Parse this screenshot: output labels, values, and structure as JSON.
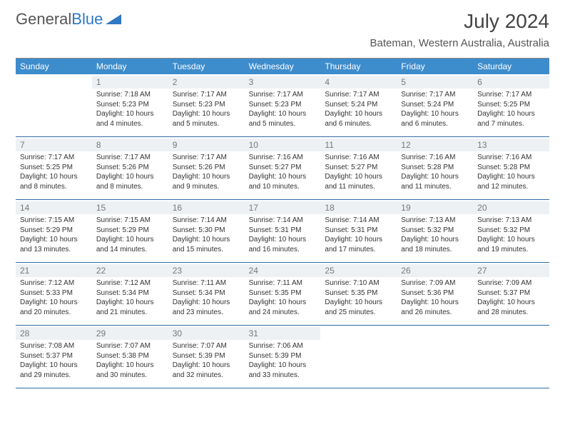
{
  "logo": {
    "text_a": "General",
    "text_b": "Blue",
    "shape_color": "#2f78c2"
  },
  "header": {
    "month_title": "July 2024",
    "location": "Bateman, Western Australia, Australia"
  },
  "colors": {
    "header_bg": "#3d8ccc",
    "row_border": "#2f6aa3",
    "daynum_bg": "#eef1f3"
  },
  "days_of_week": [
    "Sunday",
    "Monday",
    "Tuesday",
    "Wednesday",
    "Thursday",
    "Friday",
    "Saturday"
  ],
  "first_weekday": 1,
  "days": [
    {
      "n": 1,
      "sunrise": "7:18 AM",
      "sunset": "5:23 PM",
      "daylight": "10 hours and 4 minutes."
    },
    {
      "n": 2,
      "sunrise": "7:17 AM",
      "sunset": "5:23 PM",
      "daylight": "10 hours and 5 minutes."
    },
    {
      "n": 3,
      "sunrise": "7:17 AM",
      "sunset": "5:23 PM",
      "daylight": "10 hours and 5 minutes."
    },
    {
      "n": 4,
      "sunrise": "7:17 AM",
      "sunset": "5:24 PM",
      "daylight": "10 hours and 6 minutes."
    },
    {
      "n": 5,
      "sunrise": "7:17 AM",
      "sunset": "5:24 PM",
      "daylight": "10 hours and 6 minutes."
    },
    {
      "n": 6,
      "sunrise": "7:17 AM",
      "sunset": "5:25 PM",
      "daylight": "10 hours and 7 minutes."
    },
    {
      "n": 7,
      "sunrise": "7:17 AM",
      "sunset": "5:25 PM",
      "daylight": "10 hours and 8 minutes."
    },
    {
      "n": 8,
      "sunrise": "7:17 AM",
      "sunset": "5:26 PM",
      "daylight": "10 hours and 8 minutes."
    },
    {
      "n": 9,
      "sunrise": "7:17 AM",
      "sunset": "5:26 PM",
      "daylight": "10 hours and 9 minutes."
    },
    {
      "n": 10,
      "sunrise": "7:16 AM",
      "sunset": "5:27 PM",
      "daylight": "10 hours and 10 minutes."
    },
    {
      "n": 11,
      "sunrise": "7:16 AM",
      "sunset": "5:27 PM",
      "daylight": "10 hours and 11 minutes."
    },
    {
      "n": 12,
      "sunrise": "7:16 AM",
      "sunset": "5:28 PM",
      "daylight": "10 hours and 11 minutes."
    },
    {
      "n": 13,
      "sunrise": "7:16 AM",
      "sunset": "5:28 PM",
      "daylight": "10 hours and 12 minutes."
    },
    {
      "n": 14,
      "sunrise": "7:15 AM",
      "sunset": "5:29 PM",
      "daylight": "10 hours and 13 minutes."
    },
    {
      "n": 15,
      "sunrise": "7:15 AM",
      "sunset": "5:29 PM",
      "daylight": "10 hours and 14 minutes."
    },
    {
      "n": 16,
      "sunrise": "7:14 AM",
      "sunset": "5:30 PM",
      "daylight": "10 hours and 15 minutes."
    },
    {
      "n": 17,
      "sunrise": "7:14 AM",
      "sunset": "5:31 PM",
      "daylight": "10 hours and 16 minutes."
    },
    {
      "n": 18,
      "sunrise": "7:14 AM",
      "sunset": "5:31 PM",
      "daylight": "10 hours and 17 minutes."
    },
    {
      "n": 19,
      "sunrise": "7:13 AM",
      "sunset": "5:32 PM",
      "daylight": "10 hours and 18 minutes."
    },
    {
      "n": 20,
      "sunrise": "7:13 AM",
      "sunset": "5:32 PM",
      "daylight": "10 hours and 19 minutes."
    },
    {
      "n": 21,
      "sunrise": "7:12 AM",
      "sunset": "5:33 PM",
      "daylight": "10 hours and 20 minutes."
    },
    {
      "n": 22,
      "sunrise": "7:12 AM",
      "sunset": "5:34 PM",
      "daylight": "10 hours and 21 minutes."
    },
    {
      "n": 23,
      "sunrise": "7:11 AM",
      "sunset": "5:34 PM",
      "daylight": "10 hours and 23 minutes."
    },
    {
      "n": 24,
      "sunrise": "7:11 AM",
      "sunset": "5:35 PM",
      "daylight": "10 hours and 24 minutes."
    },
    {
      "n": 25,
      "sunrise": "7:10 AM",
      "sunset": "5:35 PM",
      "daylight": "10 hours and 25 minutes."
    },
    {
      "n": 26,
      "sunrise": "7:09 AM",
      "sunset": "5:36 PM",
      "daylight": "10 hours and 26 minutes."
    },
    {
      "n": 27,
      "sunrise": "7:09 AM",
      "sunset": "5:37 PM",
      "daylight": "10 hours and 28 minutes."
    },
    {
      "n": 28,
      "sunrise": "7:08 AM",
      "sunset": "5:37 PM",
      "daylight": "10 hours and 29 minutes."
    },
    {
      "n": 29,
      "sunrise": "7:07 AM",
      "sunset": "5:38 PM",
      "daylight": "10 hours and 30 minutes."
    },
    {
      "n": 30,
      "sunrise": "7:07 AM",
      "sunset": "5:39 PM",
      "daylight": "10 hours and 32 minutes."
    },
    {
      "n": 31,
      "sunrise": "7:06 AM",
      "sunset": "5:39 PM",
      "daylight": "10 hours and 33 minutes."
    }
  ],
  "labels": {
    "sunrise": "Sunrise:",
    "sunset": "Sunset:",
    "daylight": "Daylight:"
  }
}
